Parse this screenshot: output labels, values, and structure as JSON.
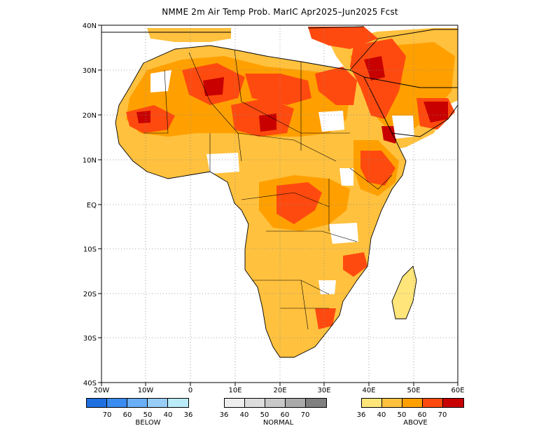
{
  "title": "NMME 2m Air Temp Prob. MarIC  Apr2025–Jun2025 Fcst",
  "axes": {
    "lat_labels": [
      "40N",
      "30N",
      "20N",
      "10N",
      "EQ",
      "10S",
      "20S",
      "30S",
      "40S"
    ],
    "lon_labels": [
      "20W",
      "10W",
      "0",
      "10E",
      "20E",
      "30E",
      "40E",
      "50E",
      "60E"
    ]
  },
  "legend": {
    "below": {
      "label": "BELOW",
      "colors": [
        "#1f6fe0",
        "#3a8cf0",
        "#6aaef5",
        "#97cdf7",
        "#b9ecf8"
      ],
      "ticks": [
        "70",
        "60",
        "50",
        "40",
        "36"
      ]
    },
    "normal": {
      "label": "NORMAL",
      "colors": [
        "#eeeeee",
        "#dddddd",
        "#c8c8c8",
        "#aaaaaa",
        "#808080"
      ],
      "ticks": [
        "36",
        "40",
        "50",
        "60",
        "70"
      ]
    },
    "above": {
      "label": "ABOVE",
      "colors": [
        "#ffe57a",
        "#ffc13e",
        "#ffa000",
        "#ff4a0f",
        "#c80000"
      ],
      "ticks": [
        "36",
        "40",
        "50",
        "60",
        "70"
      ]
    }
  }
}
